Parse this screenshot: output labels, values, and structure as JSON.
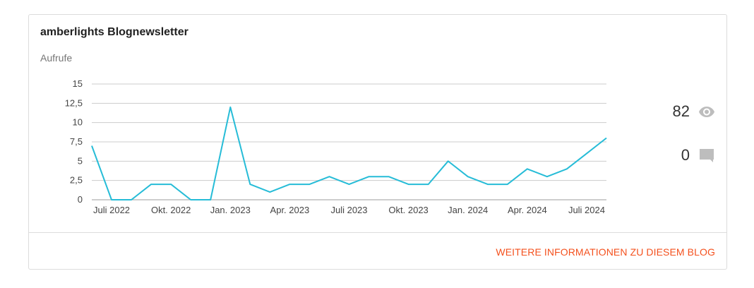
{
  "card": {
    "title": "amberlights Blognewsletter",
    "more_link": "WEITERE INFORMATIONEN ZU DIESEM BLOG"
  },
  "stats": {
    "views": "82",
    "views_icon": "eye-icon",
    "comments": "0",
    "comments_icon": "comment-icon",
    "icon_color": "#bdbdbd"
  },
  "chart_data": {
    "type": "line",
    "ylabel": "Aufrufe",
    "ylim": [
      0,
      15
    ],
    "yticks": [
      "0",
      "2,5",
      "5",
      "7,5",
      "10",
      "12,5",
      "15"
    ],
    "ytick_values": [
      0,
      2.5,
      5,
      7.5,
      10,
      12.5,
      15
    ],
    "xticks": [
      "Juli 2022",
      "Okt. 2022",
      "Jan. 2023",
      "Apr. 2023",
      "Juli 2023",
      "Okt. 2023",
      "Jan. 2024",
      "Apr. 2024",
      "Juli 2024"
    ],
    "x": [
      "2022-06",
      "2022-07",
      "2022-08",
      "2022-09",
      "2022-10",
      "2022-11",
      "2022-12",
      "2023-01",
      "2023-02",
      "2023-03",
      "2023-04",
      "2023-05",
      "2023-06",
      "2023-07",
      "2023-08",
      "2023-09",
      "2023-10",
      "2023-11",
      "2023-12",
      "2024-01",
      "2024-02",
      "2024-03",
      "2024-04",
      "2024-05",
      "2024-06",
      "2024-07",
      "2024-08"
    ],
    "series": [
      {
        "values": [
          7,
          0,
          0,
          2,
          2,
          0,
          0,
          12,
          2,
          1,
          2,
          2,
          3,
          2,
          3,
          3,
          2,
          2,
          5,
          3,
          2,
          2,
          4,
          3,
          4,
          6,
          8
        ],
        "color": "#26bcd7"
      }
    ],
    "grid": true
  }
}
